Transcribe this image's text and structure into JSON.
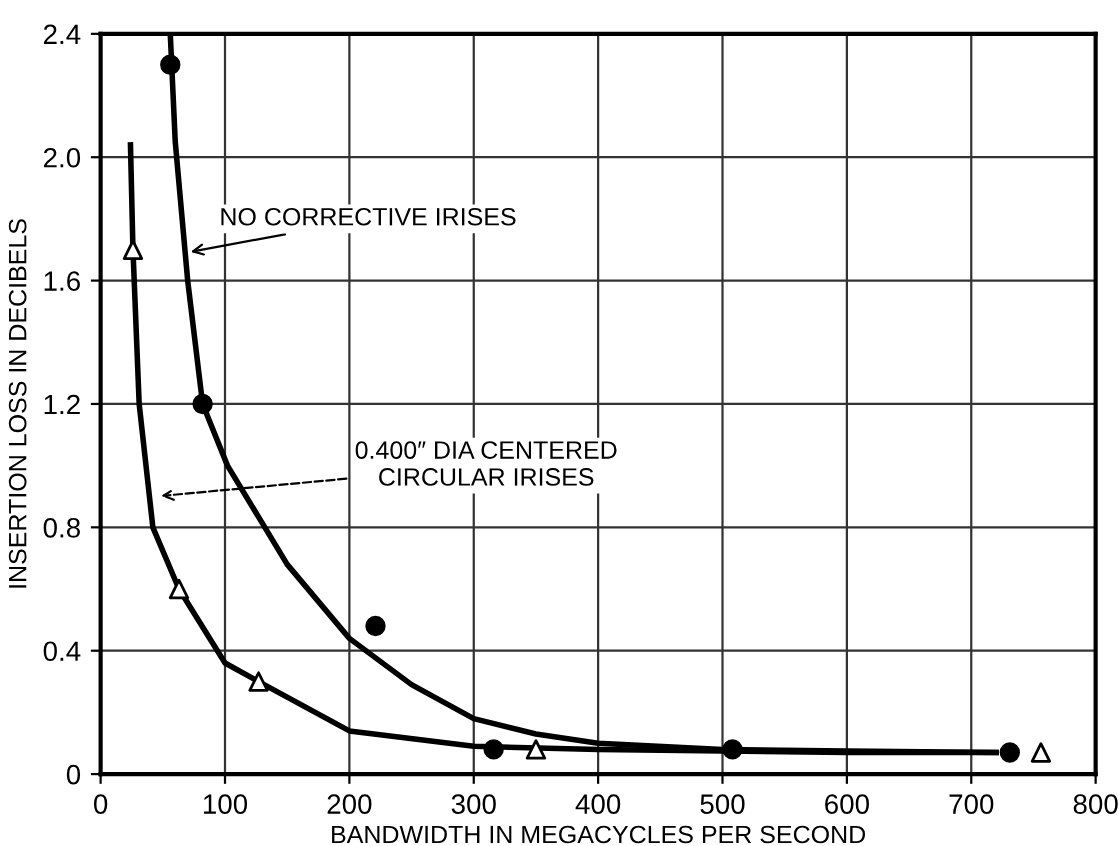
{
  "chart_data": {
    "type": "scatter",
    "xlabel": "BANDWIDTH IN MEGACYCLES PER SECOND",
    "ylabel": "INSERTION LOSS IN DECIBELS",
    "series": [
      {
        "type": "line",
        "color": "#000000",
        "marker": "none",
        "line_style": "solid",
        "x": [
          56,
          60,
          70,
          82,
          102,
          150,
          200,
          250,
          300,
          350,
          400,
          500,
          600,
          720
        ],
        "values": [
          2.4,
          2.05,
          1.6,
          1.2,
          1.0,
          0.68,
          0.44,
          0.29,
          0.18,
          0.13,
          0.1,
          0.08,
          0.075,
          0.07
        ]
      },
      {
        "type": "line",
        "color": "#000000",
        "marker": "none",
        "line_style": "solid",
        "x": [
          24,
          26,
          31,
          42,
          63,
          100,
          127,
          200,
          300,
          400,
          500,
          600,
          720
        ],
        "values": [
          2.04,
          1.7,
          1.2,
          0.8,
          0.6,
          0.36,
          0.3,
          0.14,
          0.09,
          0.08,
          0.075,
          0.07,
          0.07
        ]
      },
      {
        "type": "scatter",
        "color": "#000000",
        "marker": "circle",
        "x": [
          56,
          82,
          221,
          316,
          508,
          731
        ],
        "values": [
          2.3,
          1.2,
          0.48,
          0.08,
          0.08,
          0.07
        ]
      },
      {
        "type": "scatter",
        "color": "#000000",
        "marker": "triangle",
        "x": [
          26,
          63,
          127,
          350,
          756
        ],
        "values": [
          1.7,
          0.6,
          0.3,
          0.08,
          0.07
        ]
      }
    ],
    "annotations": [
      {
        "text": "NO CORRECTIVE IRISES",
        "x": 68,
        "y": 1.69
      },
      {
        "text": "0.400″ DIA CENTERED\nCIRCULAR IRISES",
        "x": 44,
        "y": 0.9
      }
    ],
    "xlim": [
      0,
      800
    ],
    "xticks": [
      0,
      100,
      200,
      300,
      400,
      500,
      600,
      700,
      800
    ],
    "ylim": [
      0,
      2.4
    ],
    "yticks": [
      0,
      0.4,
      0.8,
      1.2,
      1.6,
      {
        "value": 2.0,
        "label": "2.0"
      },
      2.4
    ],
    "grid": true,
    "legend": false
  }
}
